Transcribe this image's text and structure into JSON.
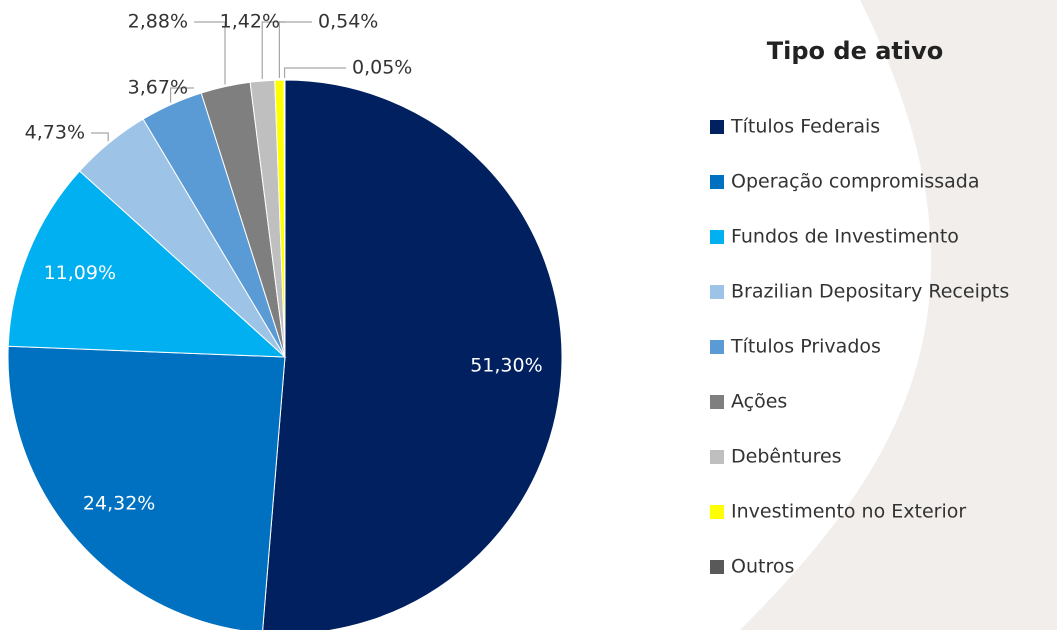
{
  "chart_data": {
    "type": "pie",
    "legend_title": "Tipo de ativo",
    "categories": [
      "Títulos Federais",
      "Operação compromissada",
      "Fundos de Investimento",
      "Brazilian Depositary Receipts",
      "Títulos Privados",
      "Ações",
      "Debêntures",
      "Investimento no Exterior",
      "Outros"
    ],
    "values": [
      51.3,
      24.32,
      11.09,
      4.73,
      3.67,
      2.88,
      1.42,
      0.54,
      0.05
    ],
    "value_labels": [
      "51,30%",
      "24,32%",
      "11,09%",
      "4,73%",
      "3,67%",
      "2,88%",
      "1,42%",
      "0,54%",
      "0,05%"
    ],
    "colors": [
      "#002060",
      "#0070c0",
      "#00b0f0",
      "#9dc3e6",
      "#5b9bd5",
      "#7f7f7f",
      "#bfbfbf",
      "#ffff00",
      "#595959"
    ],
    "legend": "right"
  }
}
